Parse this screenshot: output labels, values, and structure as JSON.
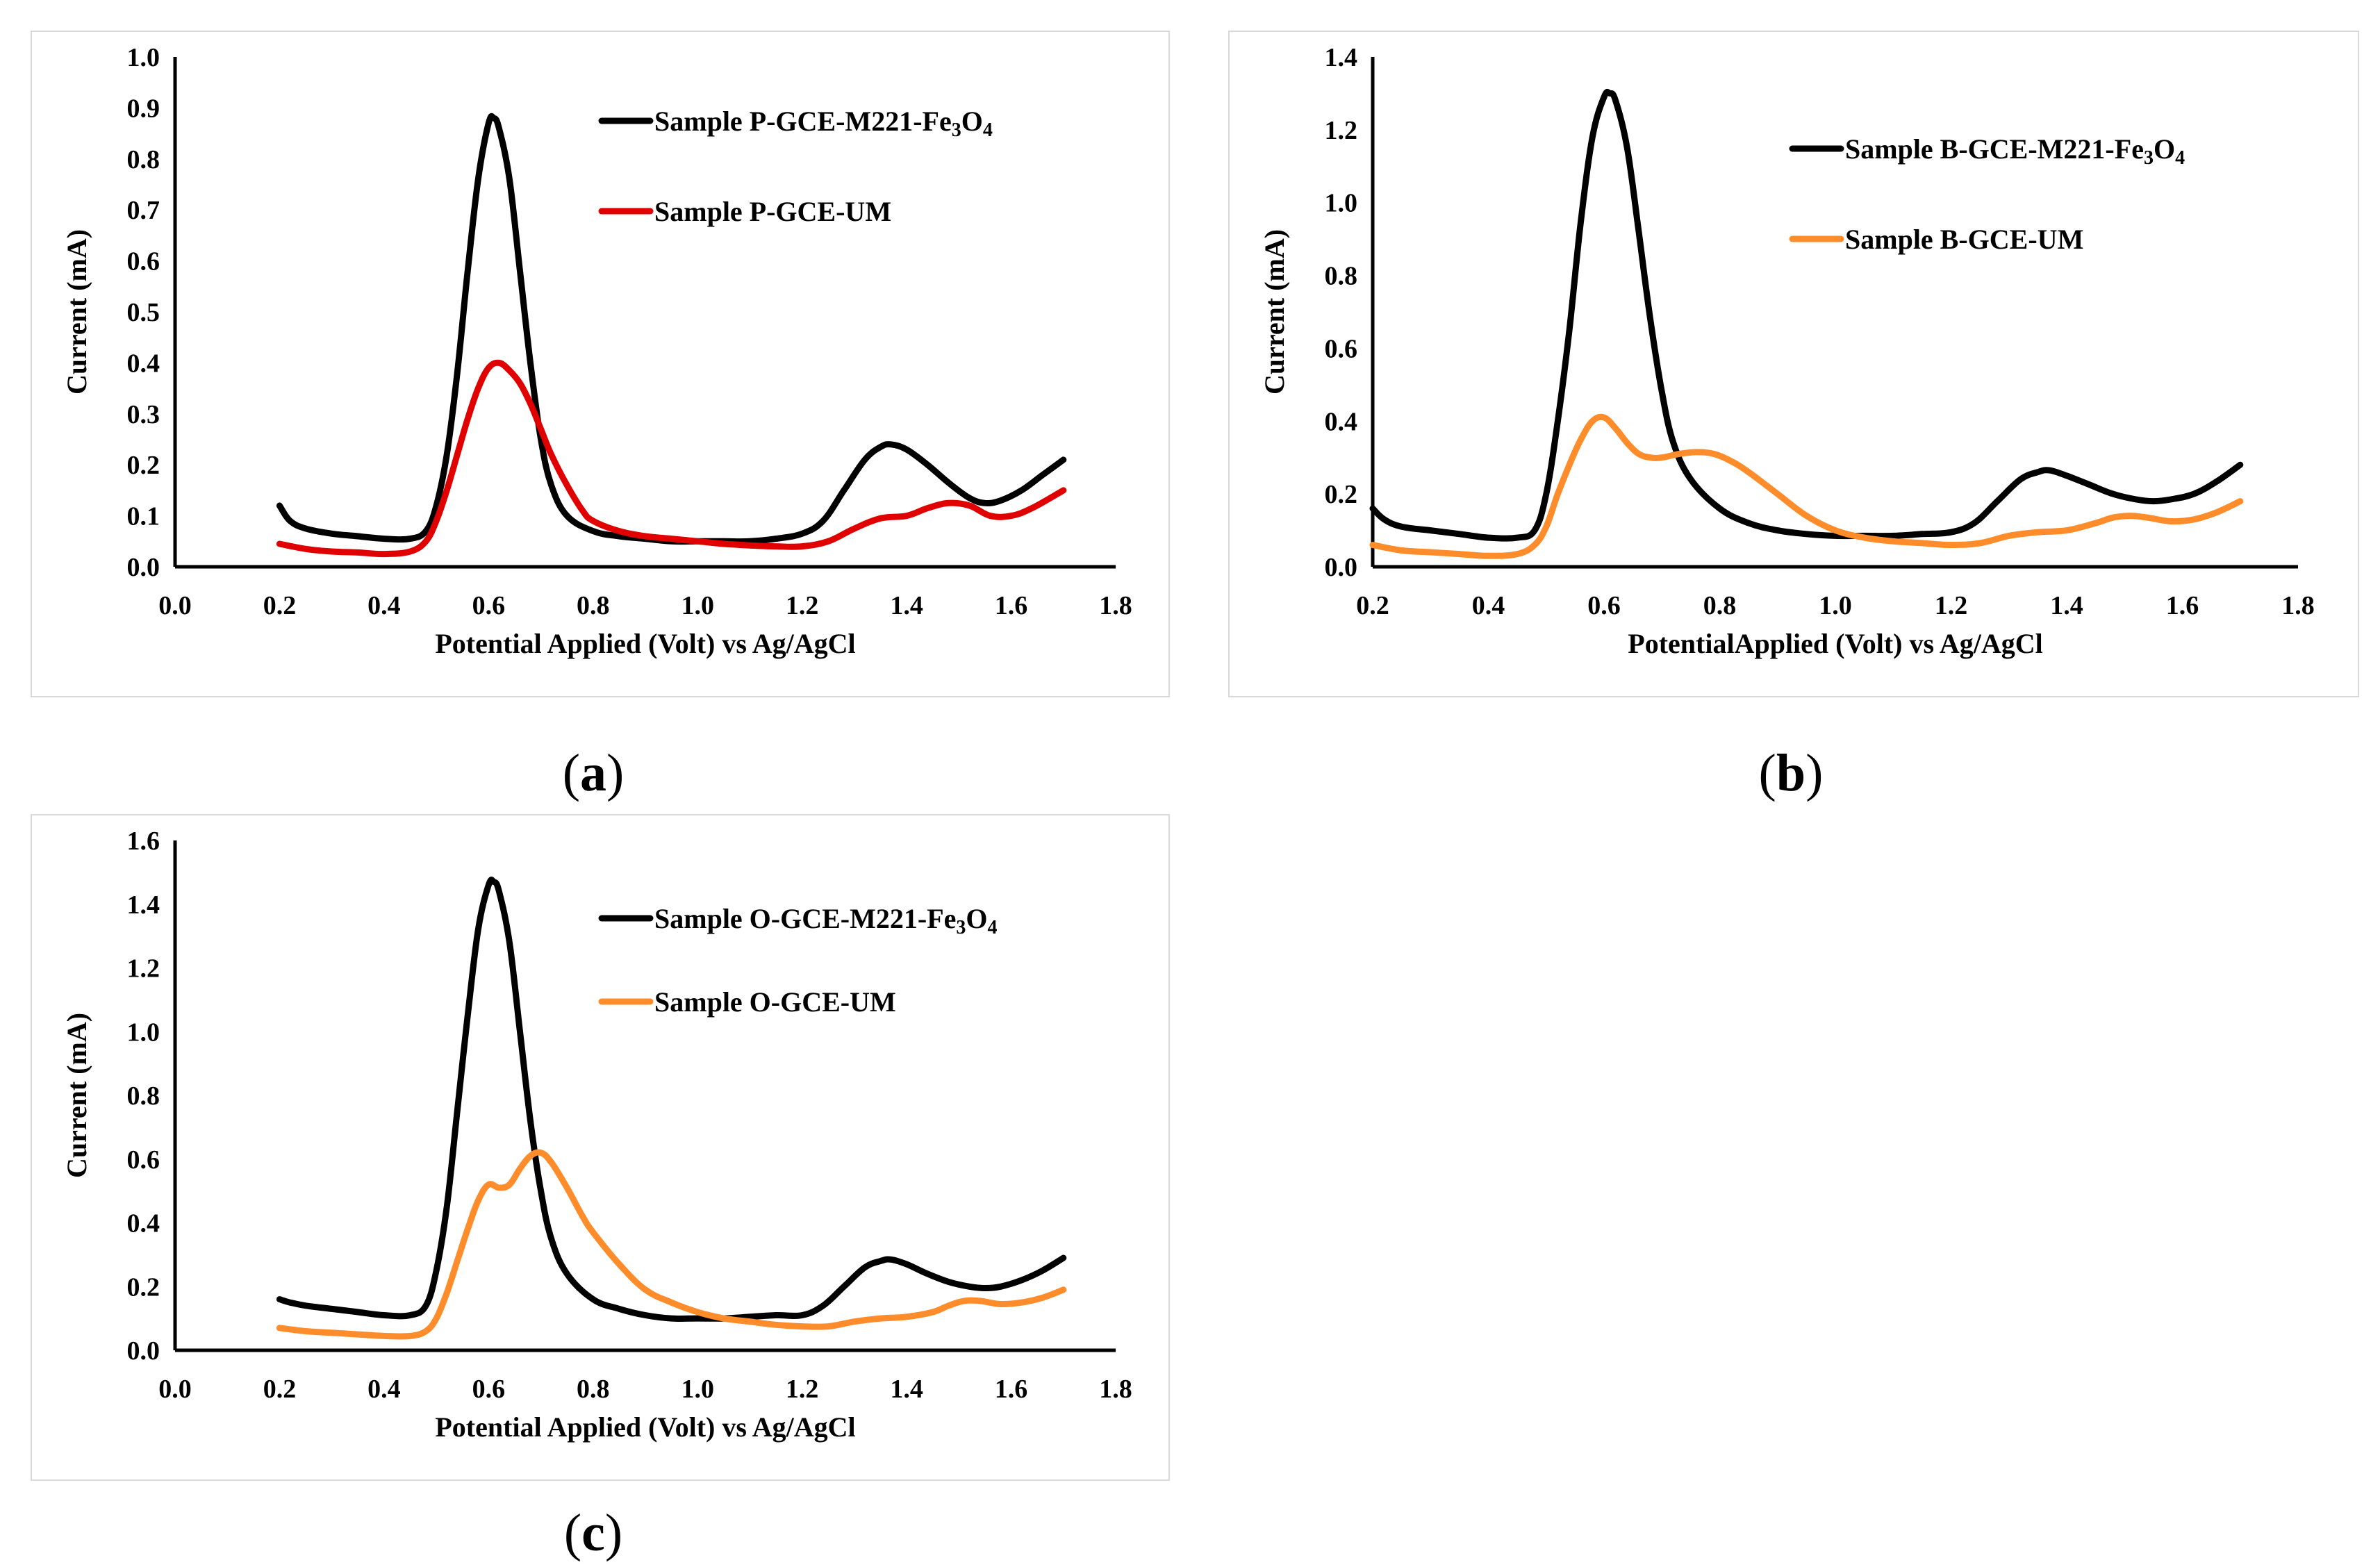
{
  "chart_data": [
    {
      "id": "a",
      "type": "line",
      "panel_label_letter": "a",
      "xlabel": "Potential Applied (Volt) vs Ag/AgCl",
      "ylabel": "Current (mA)",
      "xlim": [
        0.0,
        1.8
      ],
      "ylim": [
        0.0,
        1.0
      ],
      "xticks": [
        "0.0",
        "0.2",
        "0.4",
        "0.6",
        "0.8",
        "1.0",
        "1.2",
        "1.4",
        "1.6",
        "1.8"
      ],
      "yticks": [
        "0.0",
        "0.1",
        "0.2",
        "0.3",
        "0.4",
        "0.5",
        "0.6",
        "0.7",
        "0.8",
        "0.9",
        "1.0"
      ],
      "legend_position": "top-right",
      "series": [
        {
          "name": "Sample P-GCE-M221-Fe3O4",
          "legend_prefix": "Sample P-GCE-M221-Fe",
          "legend_sub1": "3",
          "legend_mid": "O",
          "legend_sub2": "4",
          "color": "#000000",
          "x": [
            0.2,
            0.22,
            0.25,
            0.3,
            0.35,
            0.4,
            0.45,
            0.48,
            0.5,
            0.52,
            0.54,
            0.56,
            0.58,
            0.6,
            0.61,
            0.62,
            0.64,
            0.66,
            0.68,
            0.7,
            0.72,
            0.75,
            0.8,
            0.85,
            0.9,
            0.95,
            1.0,
            1.05,
            1.1,
            1.15,
            1.2,
            1.24,
            1.28,
            1.32,
            1.35,
            1.37,
            1.4,
            1.44,
            1.48,
            1.52,
            1.55,
            1.58,
            1.62,
            1.66,
            1.7
          ],
          "y": [
            0.12,
            0.09,
            0.075,
            0.065,
            0.06,
            0.055,
            0.055,
            0.07,
            0.12,
            0.22,
            0.38,
            0.58,
            0.76,
            0.87,
            0.88,
            0.86,
            0.76,
            0.58,
            0.4,
            0.25,
            0.16,
            0.1,
            0.07,
            0.06,
            0.055,
            0.05,
            0.05,
            0.05,
            0.05,
            0.055,
            0.065,
            0.09,
            0.15,
            0.21,
            0.235,
            0.24,
            0.23,
            0.2,
            0.165,
            0.135,
            0.125,
            0.13,
            0.15,
            0.18,
            0.21
          ]
        },
        {
          "name": "Sample P-GCE-UM",
          "legend_prefix": "Sample P-GCE-UM",
          "color": "#e00000",
          "x": [
            0.2,
            0.25,
            0.3,
            0.35,
            0.4,
            0.45,
            0.48,
            0.5,
            0.52,
            0.54,
            0.56,
            0.58,
            0.6,
            0.62,
            0.64,
            0.66,
            0.68,
            0.7,
            0.72,
            0.75,
            0.78,
            0.8,
            0.85,
            0.9,
            0.95,
            1.0,
            1.05,
            1.1,
            1.15,
            1.2,
            1.25,
            1.3,
            1.35,
            1.4,
            1.44,
            1.48,
            1.52,
            1.56,
            1.6,
            1.64,
            1.7
          ],
          "y": [
            0.045,
            0.035,
            0.03,
            0.028,
            0.025,
            0.03,
            0.05,
            0.09,
            0.15,
            0.22,
            0.29,
            0.35,
            0.39,
            0.4,
            0.385,
            0.36,
            0.32,
            0.27,
            0.22,
            0.16,
            0.11,
            0.09,
            0.07,
            0.06,
            0.055,
            0.05,
            0.045,
            0.042,
            0.04,
            0.04,
            0.05,
            0.075,
            0.095,
            0.1,
            0.115,
            0.125,
            0.12,
            0.1,
            0.1,
            0.115,
            0.15
          ]
        }
      ]
    },
    {
      "id": "b",
      "type": "line",
      "panel_label_letter": "b",
      "xlabel": "PotentialApplied (Volt) vs Ag/AgCl",
      "ylabel": "Current (mA)",
      "xlim": [
        0.2,
        1.8
      ],
      "ylim": [
        0.0,
        1.4
      ],
      "xticks": [
        "0.2",
        "0.4",
        "0.6",
        "0.8",
        "1.0",
        "1.2",
        "1.4",
        "1.6",
        "1.8"
      ],
      "yticks": [
        "0.0",
        "0.2",
        "0.4",
        "0.6",
        "0.8",
        "1.0",
        "1.2",
        "1.4"
      ],
      "legend_position": "top-right",
      "series": [
        {
          "name": "Sample B-GCE-M221-Fe3O4",
          "legend_prefix": "Sample B-GCE-M221-Fe",
          "legend_sub1": "3",
          "legend_mid": "O",
          "legend_sub2": "4",
          "color": "#000000",
          "x": [
            0.2,
            0.22,
            0.25,
            0.3,
            0.35,
            0.4,
            0.45,
            0.48,
            0.5,
            0.52,
            0.54,
            0.56,
            0.58,
            0.6,
            0.61,
            0.62,
            0.64,
            0.66,
            0.68,
            0.7,
            0.72,
            0.75,
            0.8,
            0.85,
            0.9,
            0.95,
            1.0,
            1.05,
            1.1,
            1.15,
            1.2,
            1.24,
            1.28,
            1.32,
            1.35,
            1.37,
            1.4,
            1.44,
            1.48,
            1.52,
            1.55,
            1.58,
            1.62,
            1.66,
            1.7
          ],
          "y": [
            0.16,
            0.13,
            0.11,
            0.1,
            0.09,
            0.08,
            0.08,
            0.1,
            0.2,
            0.4,
            0.65,
            0.95,
            1.18,
            1.29,
            1.3,
            1.28,
            1.15,
            0.92,
            0.68,
            0.48,
            0.34,
            0.24,
            0.16,
            0.12,
            0.1,
            0.09,
            0.085,
            0.085,
            0.085,
            0.09,
            0.095,
            0.12,
            0.18,
            0.24,
            0.26,
            0.265,
            0.25,
            0.225,
            0.2,
            0.185,
            0.18,
            0.185,
            0.2,
            0.235,
            0.28
          ]
        },
        {
          "name": "Sample B-GCE-UM",
          "legend_prefix": "Sample B-GCE-UM",
          "color": "#ff8c2a",
          "x": [
            0.2,
            0.25,
            0.3,
            0.35,
            0.4,
            0.45,
            0.48,
            0.5,
            0.52,
            0.54,
            0.56,
            0.58,
            0.6,
            0.62,
            0.64,
            0.66,
            0.68,
            0.7,
            0.73,
            0.76,
            0.79,
            0.82,
            0.85,
            0.9,
            0.95,
            1.0,
            1.05,
            1.1,
            1.15,
            1.2,
            1.25,
            1.3,
            1.35,
            1.4,
            1.45,
            1.48,
            1.51,
            1.54,
            1.58,
            1.62,
            1.66,
            1.7
          ],
          "y": [
            0.06,
            0.045,
            0.04,
            0.035,
            0.03,
            0.035,
            0.06,
            0.11,
            0.2,
            0.28,
            0.35,
            0.4,
            0.41,
            0.38,
            0.34,
            0.31,
            0.3,
            0.3,
            0.31,
            0.315,
            0.31,
            0.29,
            0.26,
            0.2,
            0.14,
            0.1,
            0.08,
            0.07,
            0.065,
            0.06,
            0.065,
            0.085,
            0.095,
            0.1,
            0.12,
            0.135,
            0.14,
            0.135,
            0.125,
            0.13,
            0.15,
            0.18
          ]
        }
      ]
    },
    {
      "id": "c",
      "type": "line",
      "panel_label_letter": "c",
      "xlabel": "Potential Applied (Volt) vs Ag/AgCl",
      "ylabel": "Current (mA)",
      "xlim": [
        0.0,
        1.8
      ],
      "ylim": [
        0.0,
        1.6
      ],
      "xticks": [
        "0.0",
        "0.2",
        "0.4",
        "0.6",
        "0.8",
        "1.0",
        "1.2",
        "1.4",
        "1.6",
        "1.8"
      ],
      "yticks": [
        "0.0",
        "0.2",
        "0.4",
        "0.6",
        "0.8",
        "1.0",
        "1.2",
        "1.4",
        "1.6"
      ],
      "legend_position": "top-right",
      "series": [
        {
          "name": "Sample O-GCE-M221-Fe3O4",
          "legend_prefix": "Sample O-GCE-M221-Fe",
          "legend_sub1": "3",
          "legend_mid": "O",
          "legend_sub2": "4",
          "color": "#000000",
          "x": [
            0.2,
            0.22,
            0.25,
            0.3,
            0.35,
            0.4,
            0.45,
            0.48,
            0.5,
            0.52,
            0.54,
            0.56,
            0.58,
            0.6,
            0.61,
            0.62,
            0.64,
            0.66,
            0.68,
            0.7,
            0.72,
            0.75,
            0.8,
            0.85,
            0.9,
            0.95,
            1.0,
            1.05,
            1.1,
            1.15,
            1.2,
            1.24,
            1.28,
            1.32,
            1.35,
            1.37,
            1.4,
            1.44,
            1.48,
            1.52,
            1.55,
            1.58,
            1.62,
            1.66,
            1.7
          ],
          "y": [
            0.16,
            0.15,
            0.14,
            0.13,
            0.12,
            0.11,
            0.11,
            0.14,
            0.25,
            0.45,
            0.75,
            1.05,
            1.32,
            1.46,
            1.47,
            1.44,
            1.28,
            1.0,
            0.72,
            0.5,
            0.35,
            0.24,
            0.16,
            0.13,
            0.11,
            0.1,
            0.1,
            0.1,
            0.105,
            0.11,
            0.11,
            0.14,
            0.2,
            0.26,
            0.28,
            0.285,
            0.27,
            0.24,
            0.215,
            0.2,
            0.195,
            0.2,
            0.22,
            0.25,
            0.29
          ]
        },
        {
          "name": "Sample O-GCE-UM",
          "legend_prefix": "Sample O-GCE-UM",
          "color": "#ff8c2a",
          "x": [
            0.2,
            0.25,
            0.3,
            0.35,
            0.4,
            0.45,
            0.48,
            0.5,
            0.52,
            0.54,
            0.56,
            0.58,
            0.6,
            0.62,
            0.64,
            0.66,
            0.68,
            0.7,
            0.72,
            0.75,
            0.78,
            0.8,
            0.85,
            0.9,
            0.95,
            1.0,
            1.05,
            1.1,
            1.15,
            1.2,
            1.25,
            1.3,
            1.35,
            1.4,
            1.45,
            1.48,
            1.51,
            1.54,
            1.58,
            1.62,
            1.66,
            1.7
          ],
          "y": [
            0.07,
            0.06,
            0.055,
            0.05,
            0.045,
            0.045,
            0.06,
            0.1,
            0.18,
            0.28,
            0.38,
            0.47,
            0.52,
            0.51,
            0.52,
            0.57,
            0.61,
            0.62,
            0.59,
            0.51,
            0.42,
            0.37,
            0.27,
            0.19,
            0.15,
            0.12,
            0.1,
            0.09,
            0.08,
            0.075,
            0.075,
            0.09,
            0.1,
            0.105,
            0.12,
            0.14,
            0.155,
            0.155,
            0.145,
            0.15,
            0.165,
            0.19
          ]
        }
      ]
    }
  ]
}
